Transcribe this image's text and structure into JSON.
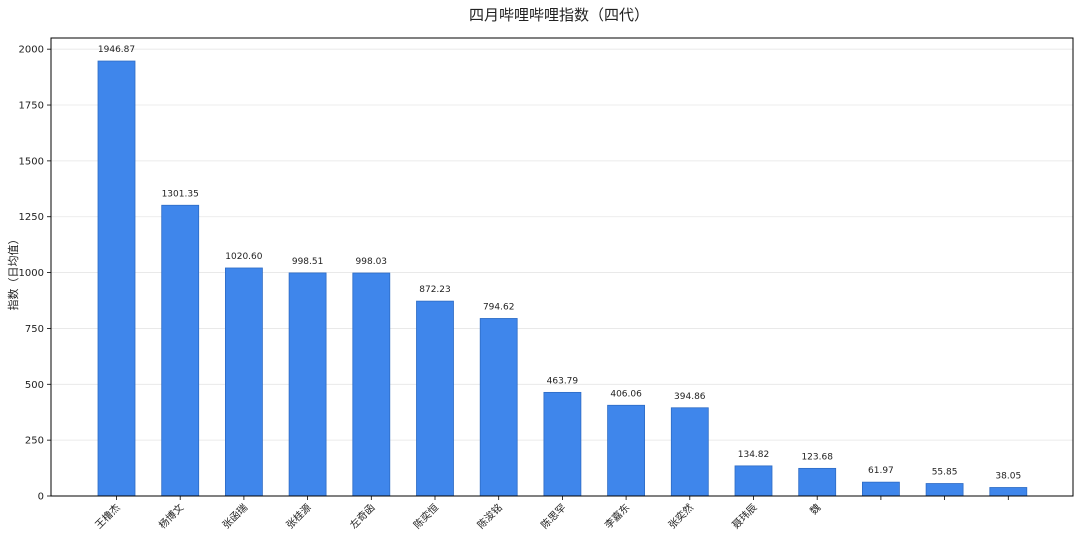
{
  "chart_data": {
    "type": "bar",
    "title": "四月哔哩哔哩指数（四代）",
    "xlabel": "",
    "ylabel": "指数（日均值）",
    "ylim": [
      0,
      2050
    ],
    "yticks": [
      0,
      250,
      500,
      750,
      1000,
      1250,
      1500,
      1750,
      2000
    ],
    "grid": "y",
    "categories": [
      "王橹杰",
      "杨博文",
      "张函瑞",
      "张桂源",
      "左奇函",
      "陈奕恒",
      "陈浚铭",
      "陈思罕",
      "李嘉东",
      "张奕然",
      "聂玮辰",
      "魏",
      "",
      "",
      ""
    ],
    "values": [
      1946.87,
      1301.35,
      1020.6,
      998.51,
      998.03,
      872.23,
      794.62,
      463.79,
      406.06,
      394.86,
      134.82,
      123.68,
      61.97,
      55.85,
      38.05
    ],
    "data_labels": [
      "1946.87",
      "1301.35",
      "1020.60",
      "998.51",
      "998.03",
      "872.23",
      "794.62",
      "463.79",
      "406.06",
      "394.86",
      "134.82",
      "123.68",
      "61.97",
      "55.85",
      "38.05"
    ],
    "colors": {
      "bar": "#3f86eb",
      "bar_edge": "#2d6bc4",
      "grid": "#e6e6e6",
      "axis": "#000000",
      "text": "#222222"
    }
  }
}
